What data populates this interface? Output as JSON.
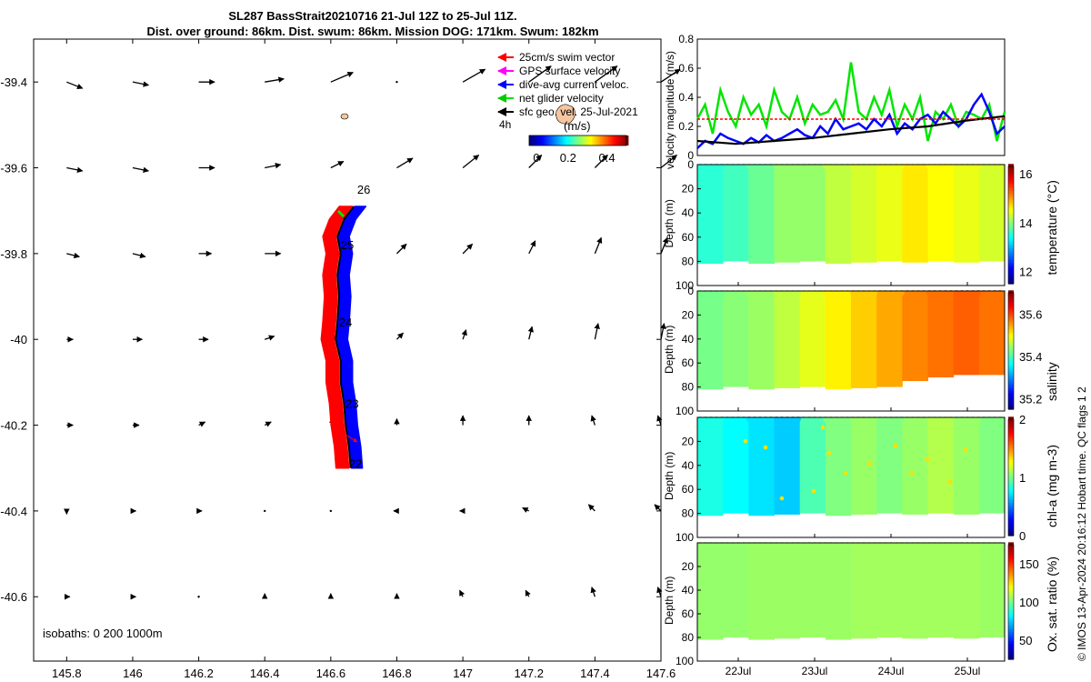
{
  "title": {
    "line1": "SL287 BassStrait20210716 21-Jul 12Z to 25-Jul 11Z.",
    "line2": "Dist. over ground: 86km. Dist. swum: 86km. Mission DOG: 171km. Swum: 182km"
  },
  "credit": "© IMOS 13-Apr-2024 20:16:12 Hobart time. QC flags 1  2",
  "colors": {
    "red": "#ff0000",
    "blue": "#0000ff",
    "green": "#00e600",
    "magenta": "#ff00ff",
    "black": "#000000",
    "land": "#f5c6a0"
  },
  "chart_data": [
    {
      "type": "map",
      "xlim": [
        145.7,
        147.6
      ],
      "ylim": [
        -40.75,
        -39.3
      ],
      "x_ticks": [
        145.8,
        146,
        146.2,
        146.4,
        146.6,
        146.8,
        147,
        147.2,
        147.4,
        147.6
      ],
      "x_tick_labels": [
        "145.8",
        "146",
        "146.2",
        "146.4",
        "146.6",
        "146.8",
        "147",
        "147.2",
        "147.4",
        "147.6"
      ],
      "y_ticks": [
        -39.4,
        -39.6,
        -39.8,
        -40,
        -40.2,
        -40.4,
        -40.6
      ],
      "y_tick_labels": [
        "-39.4",
        "-39.6",
        "-39.8",
        "-40",
        "-40.2",
        "-40.4",
        "-40.6"
      ],
      "legend": [
        "25cm/s swim vector",
        "GPS surface velocity",
        "dive-avg current veloc.",
        "net glider velocity",
        "sfc geo. vel. 25-Jul-2021"
      ],
      "legend_placement": "top-right",
      "colorbar": {
        "label": "(m/s)",
        "ticks": [
          "0",
          "0.2",
          "0.4"
        ],
        "range": [
          0,
          0.5
        ]
      },
      "small_label": "4h",
      "isobaths_label": "isobaths: 0   200  1000m",
      "day_labels": [
        {
          "text": "26",
          "lon": 146.68,
          "lat": -39.66
        },
        {
          "text": "25",
          "lon": 146.63,
          "lat": -39.79
        },
        {
          "text": "24",
          "lon": 146.625,
          "lat": -39.97
        },
        {
          "text": "23",
          "lon": 146.645,
          "lat": -40.16
        },
        {
          "text": "22",
          "lon": 146.655,
          "lat": -40.3
        }
      ],
      "track_center": [
        [
          146.67,
          -39.69
        ],
        [
          146.64,
          -39.72
        ],
        [
          146.62,
          -39.76
        ],
        [
          146.63,
          -39.8
        ],
        [
          146.62,
          -39.85
        ],
        [
          146.625,
          -39.9
        ],
        [
          146.62,
          -39.96
        ],
        [
          146.615,
          -40.0
        ],
        [
          146.63,
          -40.05
        ],
        [
          146.63,
          -40.1
        ],
        [
          146.64,
          -40.15
        ],
        [
          146.645,
          -40.2
        ],
        [
          146.655,
          -40.25
        ],
        [
          146.66,
          -40.3
        ]
      ],
      "sfc_vel_rows": [
        {
          "lat": -39.4,
          "u": [
            0.05,
            0.05,
            0.05,
            0.06,
            0.07,
            0.0,
            0.07,
            0.07,
            0.07,
            0.06
          ],
          "v": [
            -0.02,
            -0.01,
            0.0,
            0.01,
            0.03,
            0.0,
            0.04,
            0.05,
            0.05,
            0.04
          ]
        },
        {
          "lat": -39.6,
          "u": [
            0.05,
            0.05,
            0.05,
            0.05,
            0.04,
            0.05,
            0.05,
            0.04,
            0.04,
            0.05
          ],
          "v": [
            -0.01,
            -0.01,
            0.0,
            0.01,
            0.02,
            0.03,
            0.04,
            0.04,
            0.04,
            0.04
          ]
        },
        {
          "lat": -39.8,
          "u": [
            0.04,
            0.04,
            0.04,
            0.05,
            0.05,
            0.03,
            0.03,
            0.02,
            0.02,
            0.02
          ],
          "v": [
            -0.01,
            -0.01,
            0.0,
            0.0,
            0.0,
            0.03,
            0.03,
            0.04,
            0.05,
            0.05
          ]
        },
        {
          "lat": -40.0,
          "u": [
            0.02,
            0.03,
            0.03,
            0.03,
            0.02,
            0.02,
            0.01,
            0.01,
            0.01,
            0.01
          ],
          "v": [
            0.0,
            0.0,
            0.0,
            0.01,
            0.01,
            0.02,
            0.03,
            0.04,
            0.05,
            0.05
          ]
        },
        {
          "lat": -40.2,
          "u": [
            0.02,
            0.02,
            0.02,
            0.02,
            0.01,
            0.0,
            0.0,
            0.0,
            -0.01,
            -0.01
          ],
          "v": [
            0.0,
            0.0,
            0.01,
            0.01,
            0.02,
            0.02,
            0.03,
            0.03,
            0.03,
            0.03
          ]
        },
        {
          "lat": -40.4,
          "u": [
            0.0,
            0.01,
            0.01,
            0.0,
            0.0,
            -0.01,
            -0.01,
            -0.02,
            -0.02,
            -0.02
          ],
          "v": [
            -0.01,
            0.0,
            0.0,
            0.0,
            0.0,
            0.0,
            0.0,
            0.01,
            0.02,
            0.02
          ]
        },
        {
          "lat": -40.6,
          "u": [
            0.01,
            0.01,
            0.0,
            0.0,
            0.0,
            0.0,
            -0.01,
            -0.01,
            -0.01,
            -0.01
          ],
          "v": [
            0.0,
            0.0,
            0.0,
            0.01,
            0.01,
            0.01,
            0.02,
            0.02,
            0.03,
            0.03
          ]
        }
      ]
    },
    {
      "type": "line",
      "ylabel": "velocity magnitude (m/s)",
      "xlim": [
        21.5,
        25.5
      ],
      "ylim": [
        0,
        0.8
      ],
      "y_ticks": [
        "0",
        "0.2",
        "0.4",
        "0.6",
        "0.8"
      ],
      "series": [
        {
          "color": "green",
          "x": [
            21.5,
            21.6,
            21.7,
            21.8,
            21.9,
            22.0,
            22.1,
            22.2,
            22.3,
            22.4,
            22.5,
            22.6,
            22.7,
            22.8,
            22.9,
            23.0,
            23.1,
            23.2,
            23.3,
            23.4,
            23.5,
            23.6,
            23.7,
            23.8,
            23.9,
            24.0,
            24.1,
            24.2,
            24.3,
            24.4,
            24.5,
            24.6,
            24.7,
            24.8,
            24.9,
            25.0,
            25.1,
            25.2,
            25.3,
            25.4,
            25.5
          ],
          "y": [
            0.25,
            0.35,
            0.15,
            0.45,
            0.3,
            0.2,
            0.4,
            0.28,
            0.35,
            0.2,
            0.45,
            0.3,
            0.25,
            0.4,
            0.22,
            0.35,
            0.28,
            0.3,
            0.38,
            0.25,
            0.64,
            0.3,
            0.25,
            0.4,
            0.28,
            0.45,
            0.2,
            0.35,
            0.25,
            0.4,
            0.1,
            0.3,
            0.25,
            0.35,
            0.2,
            0.3,
            0.28,
            0.25,
            0.35,
            0.1,
            0.3
          ]
        },
        {
          "color": "blue",
          "x": [
            21.5,
            21.6,
            21.7,
            21.8,
            21.9,
            22.0,
            22.1,
            22.2,
            22.3,
            22.4,
            22.5,
            22.6,
            22.7,
            22.8,
            22.9,
            23.0,
            23.1,
            23.2,
            23.3,
            23.4,
            23.5,
            23.6,
            23.7,
            23.8,
            23.9,
            24.0,
            24.1,
            24.2,
            24.3,
            24.4,
            24.5,
            24.6,
            24.7,
            24.8,
            24.9,
            25.0,
            25.1,
            25.2,
            25.3,
            25.4,
            25.5
          ],
          "y": [
            0.05,
            0.1,
            0.08,
            0.15,
            0.12,
            0.1,
            0.08,
            0.12,
            0.09,
            0.14,
            0.1,
            0.12,
            0.15,
            0.18,
            0.14,
            0.12,
            0.2,
            0.15,
            0.25,
            0.18,
            0.2,
            0.22,
            0.18,
            0.25,
            0.2,
            0.28,
            0.15,
            0.22,
            0.18,
            0.25,
            0.28,
            0.22,
            0.3,
            0.25,
            0.2,
            0.25,
            0.35,
            0.42,
            0.3,
            0.15,
            0.2
          ]
        },
        {
          "color": "black",
          "x": [
            21.5,
            22.0,
            22.5,
            23.0,
            23.5,
            24.0,
            24.5,
            25.0,
            25.5
          ],
          "y": [
            0.1,
            0.08,
            0.1,
            0.12,
            0.15,
            0.18,
            0.2,
            0.24,
            0.27
          ]
        },
        {
          "color": "red",
          "x": [
            21.5,
            25.5
          ],
          "y": [
            0.25,
            0.25
          ]
        }
      ]
    },
    {
      "type": "heatmap",
      "ylabel": "Depth (m)",
      "cb_label": "temperature (°C)",
      "ylim": [
        100,
        0
      ],
      "y_ticks": [
        "0",
        "20",
        "40",
        "60",
        "80",
        "100"
      ],
      "cb_range": [
        11.5,
        16.3
      ],
      "cb_ticks": [
        "12",
        "14",
        "16"
      ],
      "bottom_depth_m": [
        82,
        80,
        82,
        81,
        80,
        82,
        81,
        80,
        81,
        80,
        81,
        80
      ],
      "values": [
        13.5,
        13.6,
        13.8,
        14.0,
        14.0,
        14.2,
        14.3,
        14.4,
        14.6,
        14.5,
        14.4,
        14.3
      ]
    },
    {
      "type": "heatmap",
      "ylabel": "Depth (m)",
      "cb_label": "salinity",
      "ylim": [
        100,
        0
      ],
      "y_ticks": [
        "0",
        "20",
        "40",
        "60",
        "80",
        "100"
      ],
      "cb_range": [
        35.15,
        35.7
      ],
      "cb_ticks": [
        "35.2",
        "35.4",
        "35.6"
      ],
      "bottom_depth_m": [
        82,
        80,
        82,
        81,
        80,
        82,
        81,
        80,
        75,
        72,
        70,
        70
      ],
      "values": [
        35.42,
        35.43,
        35.44,
        35.46,
        35.48,
        35.5,
        35.52,
        35.54,
        35.56,
        35.57,
        35.58,
        35.57
      ]
    },
    {
      "type": "heatmap",
      "ylabel": "Depth (m)",
      "cb_label": "chl-a (mg m-3)",
      "ylim": [
        100,
        0
      ],
      "y_ticks": [
        "20",
        "40",
        "60",
        "80",
        "100"
      ],
      "cb_range": [
        0,
        2
      ],
      "cb_ticks": [
        "0",
        "1",
        "2"
      ],
      "bottom_depth_m": [
        82,
        80,
        82,
        81,
        80,
        82,
        81,
        80,
        81,
        80,
        81,
        80
      ],
      "values": [
        0.8,
        0.75,
        0.7,
        0.65,
        0.9,
        1.0,
        1.05,
        1.0,
        1.05,
        1.1,
        1.05,
        1.0
      ]
    },
    {
      "type": "heatmap",
      "ylabel": "Depth (m)",
      "cb_label": "Ox. sat. ratio (%)",
      "ylim": [
        100,
        0
      ],
      "y_ticks": [
        "20",
        "40",
        "60",
        "80",
        "100"
      ],
      "cb_range": [
        25,
        175
      ],
      "cb_ticks": [
        "50",
        "100",
        "150"
      ],
      "x_tick_labels": [
        "22Jul",
        "23Jul",
        "24Jul",
        "25Jul"
      ],
      "bottom_depth_m": [
        82,
        80,
        82,
        81,
        80,
        82,
        81,
        80,
        81,
        80,
        81,
        80
      ],
      "values": [
        103,
        103,
        104,
        104,
        104,
        104,
        105,
        105,
        105,
        105,
        105,
        104
      ]
    }
  ]
}
